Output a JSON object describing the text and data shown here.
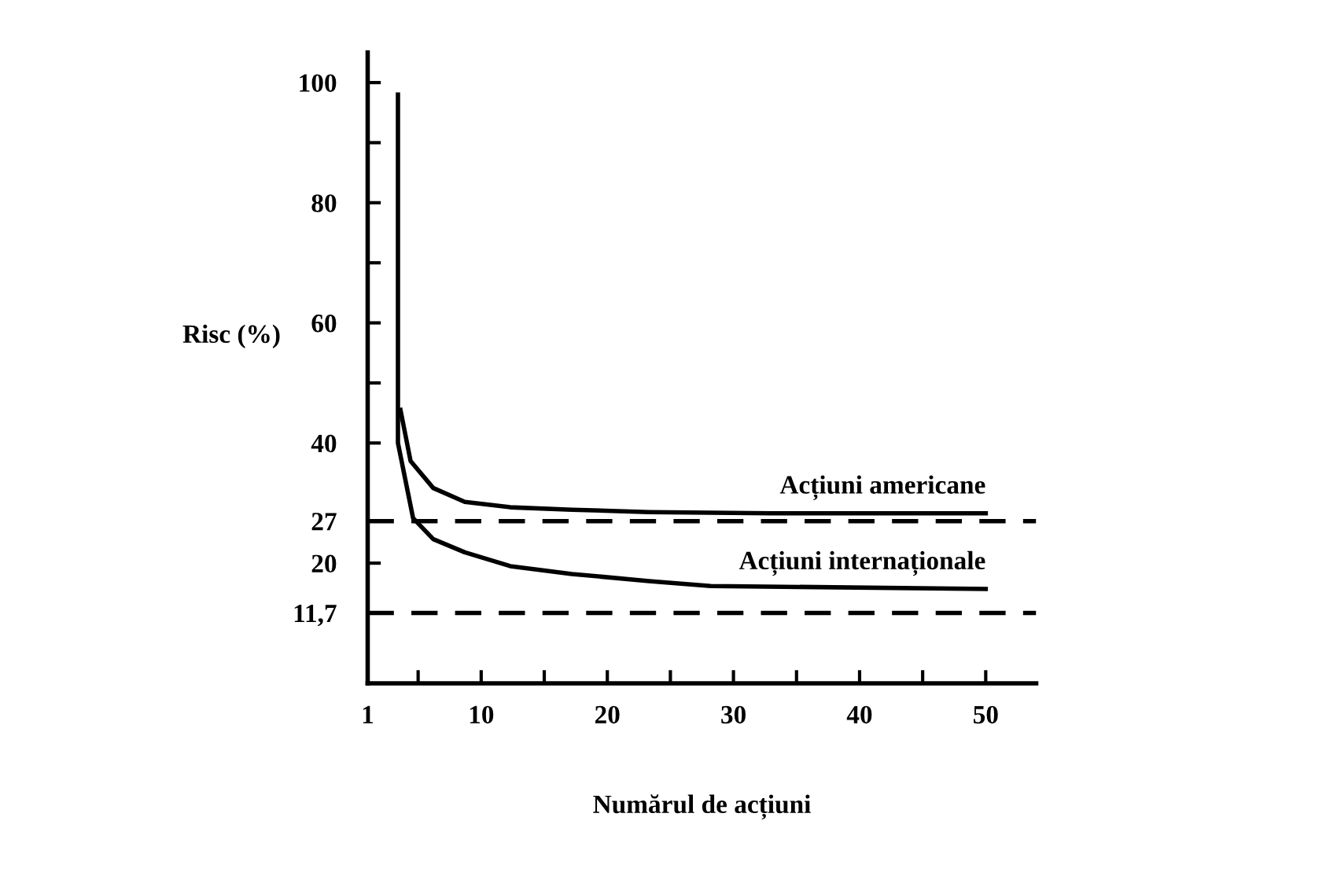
{
  "chart_data": {
    "type": "line",
    "xlabel": "Numărul de acțiuni",
    "ylabel": "Risc (%)",
    "series": [
      {
        "name": "Acțiuni americane",
        "color": "#000000",
        "x": [
          3.6,
          4.4,
          6.2,
          8.7,
          12.3,
          17.2,
          23.3,
          33,
          50
        ],
        "values": [
          45.5,
          37,
          32.5,
          30.2,
          29.3,
          28.9,
          28.5,
          28.3,
          28.3
        ]
      },
      {
        "name": "Acțiuni internaționale",
        "color": "#000000",
        "x": [
          3.4,
          3.4,
          4.6,
          6.2,
          8.7,
          12.3,
          17.2,
          23.3,
          28.2,
          50
        ],
        "values": [
          98,
          40,
          27.5,
          24,
          21.8,
          19.5,
          18.2,
          17,
          16.2,
          15.7
        ]
      }
    ],
    "ref_lines": [
      {
        "axis": "y",
        "value": 27,
        "color": "#000000",
        "line_style": "dashed"
      },
      {
        "axis": "y",
        "value": 11.7,
        "color": "#000000",
        "line_style": "dashed"
      }
    ],
    "xlim": [
      1,
      54
    ],
    "ylim": [
      0,
      105
    ],
    "xticks": [
      1,
      {
        "value": 5,
        "label": null
      },
      10,
      {
        "value": 15,
        "label": null
      },
      20,
      {
        "value": 25,
        "label": null
      },
      30,
      {
        "value": 35,
        "label": null
      },
      40,
      {
        "value": 45,
        "label": null
      },
      50
    ],
    "yticks": [
      {
        "value": 11.7,
        "label": "11,7"
      },
      20,
      27,
      40,
      {
        "value": 50,
        "label": null
      },
      60,
      {
        "value": 70,
        "label": null
      },
      80,
      {
        "value": 90,
        "label": null
      },
      100
    ],
    "grid": false,
    "legend": false,
    "marker": "none",
    "line_style": "solid"
  }
}
